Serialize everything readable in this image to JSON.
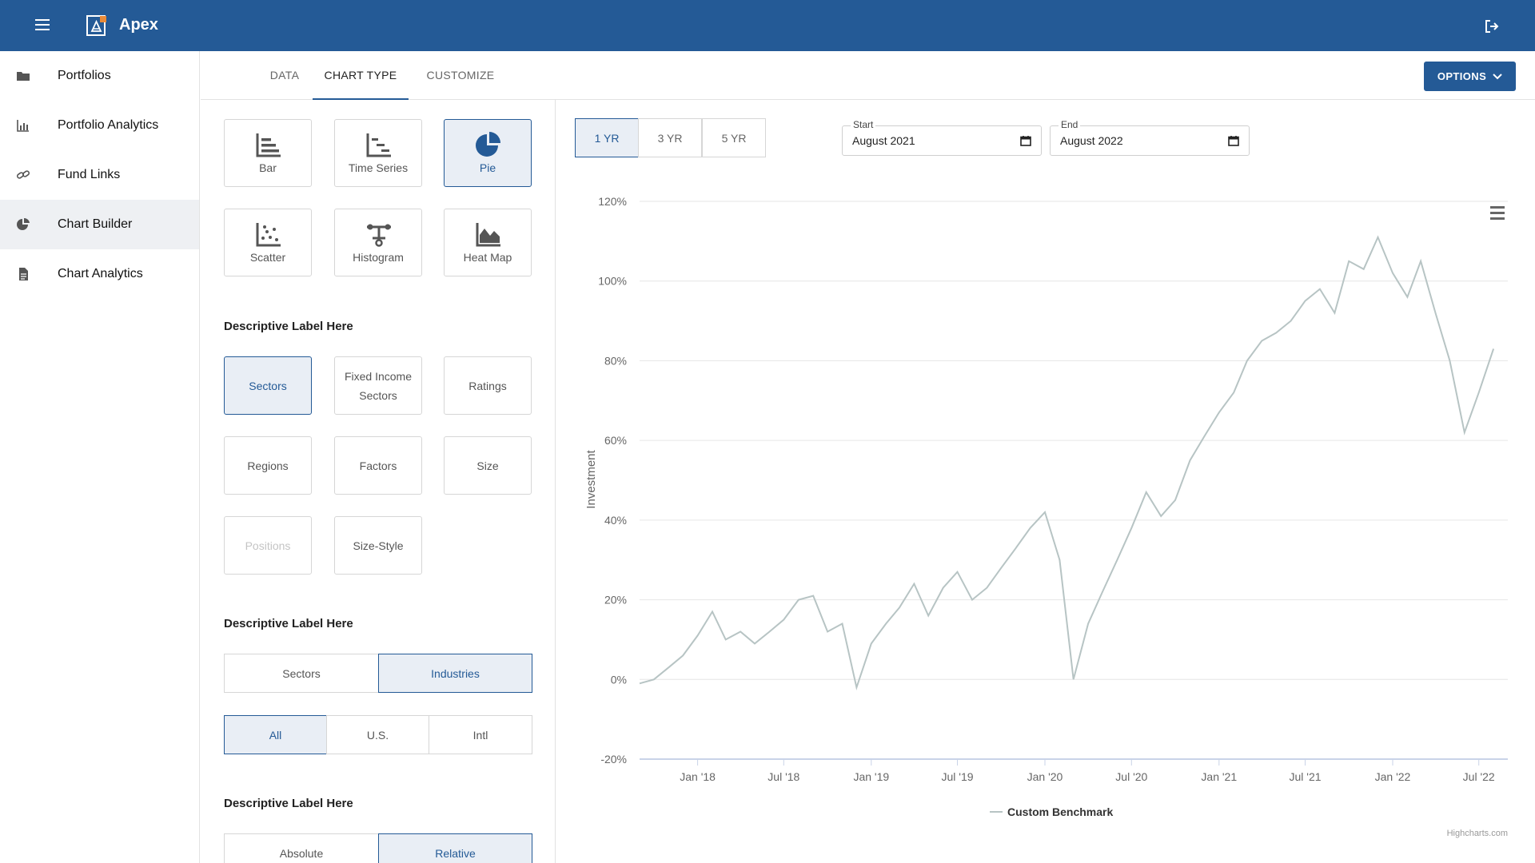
{
  "app": {
    "title": "Apex"
  },
  "sidebar": {
    "items": [
      {
        "label": "Portfolios",
        "icon": "folder-icon"
      },
      {
        "label": "Portfolio Analytics",
        "icon": "bar-chart-icon"
      },
      {
        "label": "Fund Links",
        "icon": "link-icon"
      },
      {
        "label": "Chart Builder",
        "icon": "pie-chart-icon",
        "active": true
      },
      {
        "label": "Chart Analytics",
        "icon": "document-icon"
      }
    ]
  },
  "tabs": [
    {
      "label": "DATA"
    },
    {
      "label": "CHART TYPE",
      "active": true
    },
    {
      "label": "CUSTOMIZE"
    }
  ],
  "options_button": "OPTIONS",
  "chart_types": [
    {
      "label": "Bar",
      "icon": "bar-icon"
    },
    {
      "label": "Time Series",
      "icon": "time-series-icon"
    },
    {
      "label": "Pie",
      "icon": "pie-icon",
      "selected": true
    },
    {
      "label": "Scatter",
      "icon": "scatter-icon"
    },
    {
      "label": "Histogram",
      "icon": "histogram-icon"
    },
    {
      "label": "Heat Map",
      "icon": "heat-map-icon"
    }
  ],
  "section1": {
    "label": "Descriptive Label Here",
    "options": [
      {
        "label": "Sectors",
        "selected": true
      },
      {
        "label": "Fixed Income Sectors"
      },
      {
        "label": "Ratings"
      },
      {
        "label": "Regions"
      },
      {
        "label": "Factors"
      },
      {
        "label": "Size"
      },
      {
        "label": "Positions",
        "disabled": true
      },
      {
        "label": "Size-Style"
      }
    ]
  },
  "section2": {
    "label": "Descriptive Label Here",
    "toggle": [
      {
        "label": "Sectors"
      },
      {
        "label": "Industries",
        "selected": true
      }
    ],
    "region": [
      {
        "label": "All",
        "selected": true
      },
      {
        "label": "U.S."
      },
      {
        "label": "Intl"
      }
    ]
  },
  "section3": {
    "label": "Descriptive Label Here",
    "toggle": [
      {
        "label": "Absolute"
      },
      {
        "label": "Relative",
        "selected": true
      }
    ]
  },
  "range_buttons": [
    {
      "label": "1 YR",
      "selected": true
    },
    {
      "label": "3 YR"
    },
    {
      "label": "5 YR"
    }
  ],
  "start": {
    "label": "Start",
    "value": "August 2021"
  },
  "end": {
    "label": "End",
    "value": "August 2022"
  },
  "colors": {
    "brand": "#245a96",
    "series": "#b7c4c4",
    "selected_bg": "#e9eef5"
  },
  "chart_data": {
    "type": "line",
    "title": "",
    "xlabel": "",
    "ylabel": "Investment",
    "ylim": [
      -20,
      120
    ],
    "yticks": [
      "-20%",
      "0%",
      "20%",
      "40%",
      "60%",
      "80%",
      "100%",
      "120%"
    ],
    "xticks": [
      "Jan '18",
      "Jul '18",
      "Jan '19",
      "Jul '19",
      "Jan '20",
      "Jul '20",
      "Jan '21",
      "Jul '21",
      "Jan '22",
      "Jul '22"
    ],
    "grid": true,
    "legend": "bottom-center",
    "credits": "Highcharts.com",
    "series": [
      {
        "name": "Custom Benchmark",
        "x": [
          "2017-09",
          "2017-10",
          "2017-11",
          "2017-12",
          "2018-01",
          "2018-02",
          "2018-03",
          "2018-04",
          "2018-05",
          "2018-06",
          "2018-07",
          "2018-08",
          "2018-09",
          "2018-10",
          "2018-11",
          "2018-12",
          "2019-01",
          "2019-02",
          "2019-03",
          "2019-04",
          "2019-05",
          "2019-06",
          "2019-07",
          "2019-08",
          "2019-09",
          "2019-10",
          "2019-11",
          "2019-12",
          "2020-01",
          "2020-02",
          "2020-03",
          "2020-04",
          "2020-05",
          "2020-06",
          "2020-07",
          "2020-08",
          "2020-09",
          "2020-10",
          "2020-11",
          "2020-12",
          "2021-01",
          "2021-02",
          "2021-03",
          "2021-04",
          "2021-05",
          "2021-06",
          "2021-07",
          "2021-08",
          "2021-09",
          "2021-10",
          "2021-11",
          "2021-12",
          "2022-01",
          "2022-02",
          "2022-03",
          "2022-04",
          "2022-05",
          "2022-06",
          "2022-07",
          "2022-08"
        ],
        "values": [
          -1,
          0,
          3,
          6,
          11,
          17,
          10,
          12,
          9,
          12,
          15,
          20,
          21,
          12,
          14,
          -2,
          9,
          14,
          18,
          24,
          16,
          23,
          27,
          20,
          23,
          28,
          33,
          38,
          42,
          30,
          0,
          14,
          22,
          30,
          38,
          47,
          41,
          45,
          55,
          61,
          67,
          72,
          80,
          85,
          87,
          90,
          95,
          98,
          92,
          105,
          103,
          111,
          102,
          96,
          105,
          92,
          80,
          62,
          72,
          83
        ]
      }
    ]
  }
}
